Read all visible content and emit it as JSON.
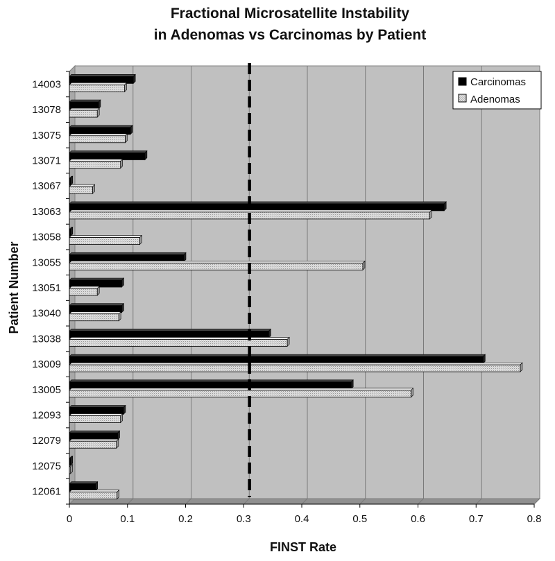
{
  "chart_data": {
    "type": "bar",
    "orientation": "horizontal",
    "title": "Fractional Microsatellite Instability",
    "subtitle": "in Adenomas vs Carcinomas by Patient",
    "xlabel": "FINST Rate",
    "ylabel": "Patient Number",
    "xlim": [
      0,
      0.8
    ],
    "xticks": [
      "0",
      "0.1",
      "0.2",
      "0.3",
      "0.4",
      "0.5",
      "0.6",
      "0.7",
      "0.8"
    ],
    "reference_line": 0.31,
    "grid": "vertical",
    "legend_position": "top-right",
    "categories": [
      "14003",
      "13078",
      "13075",
      "13071",
      "13067",
      "13063",
      "13058",
      "13055",
      "13051",
      "13040",
      "13038",
      "13009",
      "13005",
      "12093",
      "12079",
      "12075",
      "12061"
    ],
    "series": [
      {
        "name": "Carcinomas",
        "color": "#000000",
        "values": [
          0.11,
          0.05,
          0.105,
          0.13,
          0.002,
          0.645,
          0.002,
          0.197,
          0.09,
          0.09,
          0.343,
          0.712,
          0.485,
          0.093,
          0.083,
          0.002,
          0.045
        ]
      },
      {
        "name": "Adenomas",
        "color": "#d4d4d4",
        "values": [
          0.095,
          0.048,
          0.096,
          0.088,
          0.04,
          0.62,
          0.121,
          0.505,
          0.048,
          0.085,
          0.375,
          0.776,
          0.588,
          0.088,
          0.081,
          0.002,
          0.082
        ]
      }
    ]
  }
}
